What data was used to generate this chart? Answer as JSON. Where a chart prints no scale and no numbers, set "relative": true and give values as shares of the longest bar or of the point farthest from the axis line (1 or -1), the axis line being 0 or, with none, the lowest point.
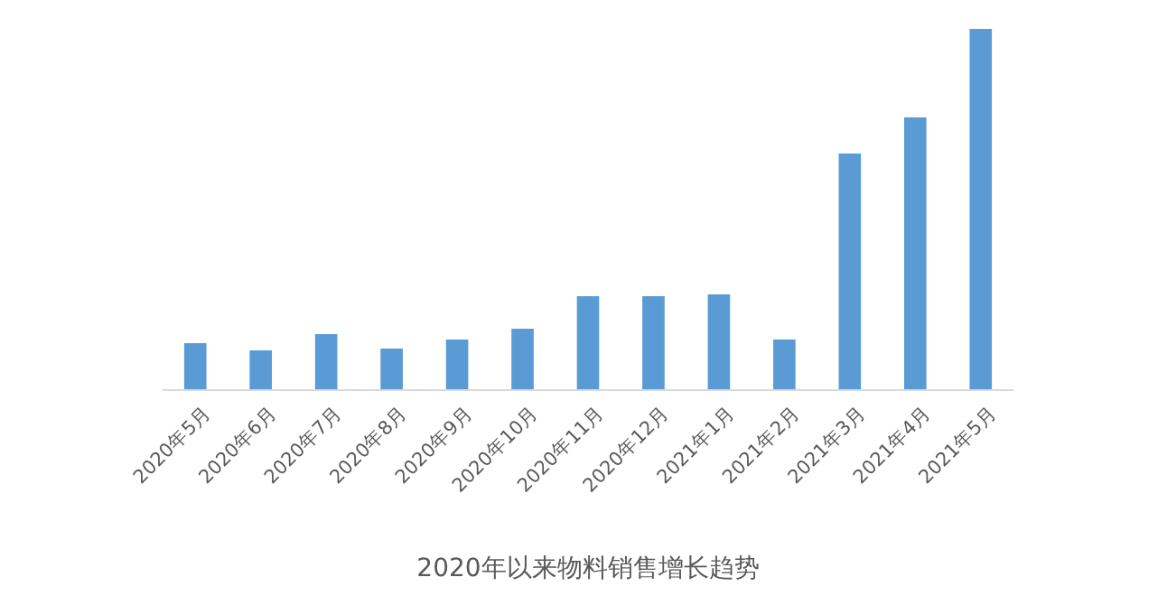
{
  "chart_data": {
    "type": "bar",
    "title": "2020年以来物料销售增长趋势",
    "relative": true,
    "color": "#5b9bd5",
    "categories": [
      "2020年5月",
      "2020年6月",
      "2020年7月",
      "2020年8月",
      "2020年9月",
      "2020年10月",
      "2020年11月",
      "2020年12月",
      "2021年1月",
      "2021年2月",
      "2021年3月",
      "2021年4月",
      "2021年5月"
    ],
    "values": [
      0.13,
      0.11,
      0.155,
      0.115,
      0.14,
      0.17,
      0.26,
      0.26,
      0.265,
      0.14,
      0.655,
      0.755,
      1
    ]
  }
}
